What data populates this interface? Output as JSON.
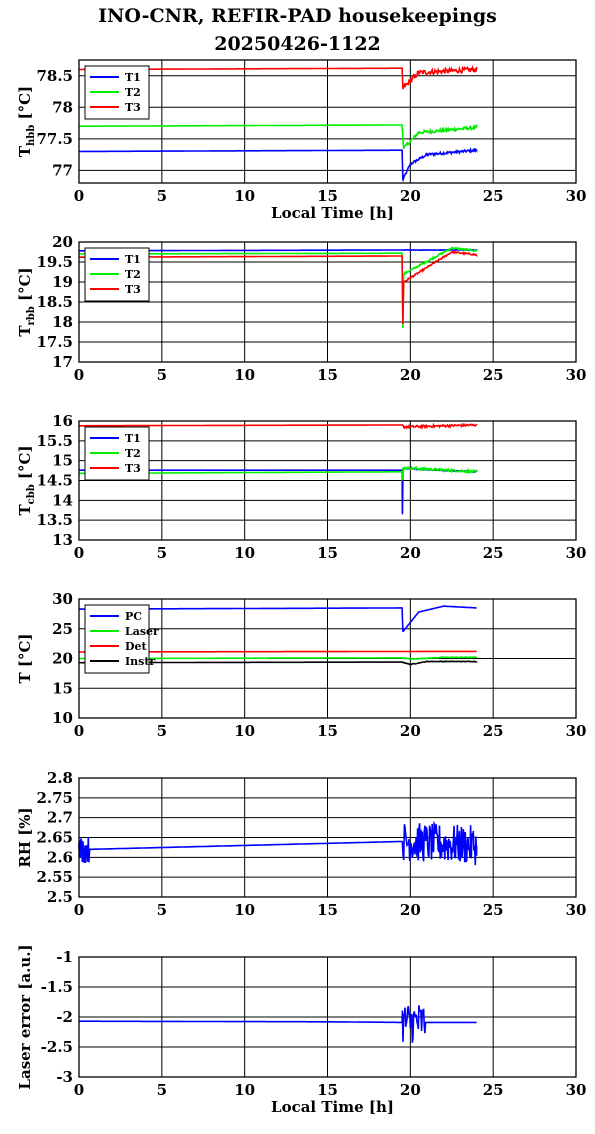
{
  "title_line1": "INO-CNR, REFIR-PAD housekeepings",
  "title_line2": "20250426-1122",
  "chart_data": [
    {
      "type": "line",
      "ylabel_main": "T",
      "ylabel_sub": "hbb",
      "ylabel_unit": "[°C]",
      "xlabel": "Local Time [h]",
      "xlim": [
        0,
        30
      ],
      "ylim": [
        76.8,
        78.75
      ],
      "xticks": [
        0,
        5,
        10,
        15,
        20,
        25,
        30
      ],
      "yticks": [
        77,
        77.5,
        78,
        78.5
      ],
      "ytick_labels": [
        "77",
        "77.5",
        "78",
        "78.5"
      ],
      "grid": true,
      "legend_position": "top-left",
      "series": [
        {
          "name": "T1",
          "color": "#0000ff",
          "points": [
            [
              0,
              77.3
            ],
            [
              19.5,
              77.32
            ],
            [
              19.55,
              76.85
            ],
            [
              20,
              77.1
            ],
            [
              21,
              77.25
            ],
            [
              24,
              77.32
            ]
          ],
          "noise": 0.02
        },
        {
          "name": "T2",
          "color": "#00ee00",
          "points": [
            [
              0,
              77.7
            ],
            [
              19.5,
              77.72
            ],
            [
              19.6,
              77.35
            ],
            [
              20.5,
              77.6
            ],
            [
              24,
              77.68
            ]
          ],
          "noise": 0.025
        },
        {
          "name": "T3",
          "color": "#ff0000",
          "points": [
            [
              0,
              78.6
            ],
            [
              19.5,
              78.62
            ],
            [
              19.55,
              78.3
            ],
            [
              20.5,
              78.55
            ],
            [
              24,
              78.6
            ]
          ],
          "noise": 0.04
        }
      ]
    },
    {
      "type": "line",
      "ylabel_main": "T",
      "ylabel_sub": "rbb",
      "ylabel_unit": "[°C]",
      "xlabel": "",
      "xlim": [
        0,
        30
      ],
      "ylim": [
        17,
        20
      ],
      "xticks": [
        0,
        5,
        10,
        15,
        20,
        25,
        30
      ],
      "yticks": [
        17,
        17.5,
        18,
        18.5,
        19,
        19.5,
        20
      ],
      "ytick_labels": [
        "17",
        "17.5",
        "18",
        "18.5",
        "19",
        "19.5",
        "20"
      ],
      "grid": true,
      "legend_position": "top-left",
      "series": [
        {
          "name": "T1",
          "color": "#0000ff",
          "points": [
            [
              0,
              19.78
            ],
            [
              19.5,
              19.8
            ],
            [
              24,
              19.8
            ]
          ],
          "noise": 0.005
        },
        {
          "name": "T2",
          "color": "#00ee00",
          "points": [
            [
              0,
              19.7
            ],
            [
              19.5,
              19.72
            ],
            [
              19.55,
              17.85
            ],
            [
              19.6,
              19.2
            ],
            [
              22.5,
              19.85
            ],
            [
              24,
              19.78
            ]
          ],
          "noise": 0.02
        },
        {
          "name": "T3",
          "color": "#ff0000",
          "points": [
            [
              0,
              19.62
            ],
            [
              19.5,
              19.65
            ],
            [
              19.55,
              17.95
            ],
            [
              19.6,
              19.0
            ],
            [
              22.5,
              19.75
            ],
            [
              24,
              19.68
            ]
          ],
          "noise": 0.02
        }
      ]
    },
    {
      "type": "line",
      "ylabel_main": "T",
      "ylabel_sub": "cbb",
      "ylabel_unit": "[°C]",
      "xlabel": "",
      "xlim": [
        0,
        30
      ],
      "ylim": [
        13,
        16
      ],
      "xticks": [
        0,
        5,
        10,
        15,
        20,
        25,
        30
      ],
      "yticks": [
        13,
        13.5,
        14,
        14.5,
        15,
        15.5,
        16
      ],
      "ytick_labels": [
        "13",
        "13.5",
        "14",
        "14.5",
        "15",
        "15.5",
        "16"
      ],
      "grid": true,
      "legend_position": "top-left",
      "series": [
        {
          "name": "T1",
          "color": "#0000ff",
          "points": [
            [
              0,
              14.76
            ],
            [
              19.5,
              14.76
            ],
            [
              19.52,
              13.65
            ],
            [
              19.56,
              14.8
            ],
            [
              24,
              14.72
            ]
          ],
          "noise": 0.01
        },
        {
          "name": "T2",
          "color": "#00ee00",
          "points": [
            [
              0,
              14.68
            ],
            [
              19.5,
              14.72
            ],
            [
              19.52,
              14.5
            ],
            [
              19.56,
              14.82
            ],
            [
              24,
              14.72
            ]
          ],
          "noise": 0.03
        },
        {
          "name": "T3",
          "color": "#ff0000",
          "points": [
            [
              0,
              15.88
            ],
            [
              19.5,
              15.9
            ],
            [
              19.6,
              15.85
            ],
            [
              24,
              15.9
            ]
          ],
          "noise": 0.03
        }
      ]
    },
    {
      "type": "line",
      "ylabel_main": "T [°C]",
      "ylabel_sub": "",
      "ylabel_unit": "",
      "xlabel": "",
      "xlim": [
        0,
        30
      ],
      "ylim": [
        10,
        30
      ],
      "xticks": [
        0,
        5,
        10,
        15,
        20,
        25,
        30
      ],
      "yticks": [
        10,
        15,
        20,
        25,
        30
      ],
      "ytick_labels": [
        "10",
        "15",
        "20",
        "25",
        "30"
      ],
      "grid": true,
      "legend_position": "top-left",
      "series": [
        {
          "name": "PC",
          "color": "#0000ff",
          "points": [
            [
              0,
              28.3
            ],
            [
              19.5,
              28.5
            ],
            [
              19.55,
              24.5
            ],
            [
              20.5,
              27.8
            ],
            [
              22,
              28.8
            ],
            [
              24,
              28.5
            ]
          ],
          "noise": 0.0
        },
        {
          "name": "Laser",
          "color": "#00ee00",
          "points": [
            [
              0,
              20.0
            ],
            [
              19.5,
              20.1
            ],
            [
              20,
              19.9
            ],
            [
              22,
              20.2
            ],
            [
              24,
              20.2
            ]
          ],
          "noise": 0.05
        },
        {
          "name": "Det",
          "color": "#ff0000",
          "points": [
            [
              0,
              21.1
            ],
            [
              24,
              21.2
            ]
          ],
          "noise": 0.0
        },
        {
          "name": "Instr",
          "color": "#000000",
          "points": [
            [
              0,
              19.3
            ],
            [
              19.5,
              19.4
            ],
            [
              20,
              19.0
            ],
            [
              21,
              19.5
            ],
            [
              24,
              19.5
            ]
          ],
          "noise": 0.05
        }
      ]
    },
    {
      "type": "line",
      "ylabel_main": "RH [%]",
      "ylabel_sub": "",
      "ylabel_unit": "",
      "xlabel": "",
      "xlim": [
        0,
        30
      ],
      "ylim": [
        2.5,
        2.8
      ],
      "xticks": [
        0,
        5,
        10,
        15,
        20,
        25,
        30
      ],
      "yticks": [
        2.5,
        2.55,
        2.6,
        2.65,
        2.7,
        2.75,
        2.8
      ],
      "ytick_labels": [
        "2.5",
        "2.55",
        "2.6",
        "2.65",
        "2.7",
        "2.75",
        "2.8"
      ],
      "grid": true,
      "legend_position": "none",
      "series": [
        {
          "name": "",
          "color": "#0000ff",
          "points": [
            [
              0,
              2.62
            ],
            [
              0.5,
              2.62
            ],
            [
              19.5,
              2.64
            ],
            [
              24,
              2.63
            ]
          ],
          "noise": 0.0,
          "bursts": [
            [
              0,
              0.6,
              0.035
            ],
            [
              19.5,
              24,
              0.05
            ]
          ]
        }
      ]
    },
    {
      "type": "line",
      "ylabel_main": "Laser error [a.u.]",
      "ylabel_sub": "",
      "ylabel_unit": "",
      "xlabel": "Local Time [h]",
      "xlim": [
        0,
        30
      ],
      "ylim": [
        -3,
        -1
      ],
      "xticks": [
        0,
        5,
        10,
        15,
        20,
        25,
        30
      ],
      "yticks": [
        -3,
        -2.5,
        -2,
        -1.5,
        -1
      ],
      "ytick_labels": [
        "-3",
        "-2.5",
        "-2",
        "-1.5",
        "-1"
      ],
      "grid": true,
      "legend_position": "none",
      "series": [
        {
          "name": "",
          "color": "#0000ff",
          "points": [
            [
              0,
              -2.07
            ],
            [
              15,
              -2.08
            ],
            [
              19.5,
              -2.09
            ],
            [
              24,
              -2.09
            ]
          ],
          "noise": 0.0,
          "bursts": [
            [
              19.5,
              20.9,
              0.35
            ]
          ]
        }
      ]
    }
  ]
}
